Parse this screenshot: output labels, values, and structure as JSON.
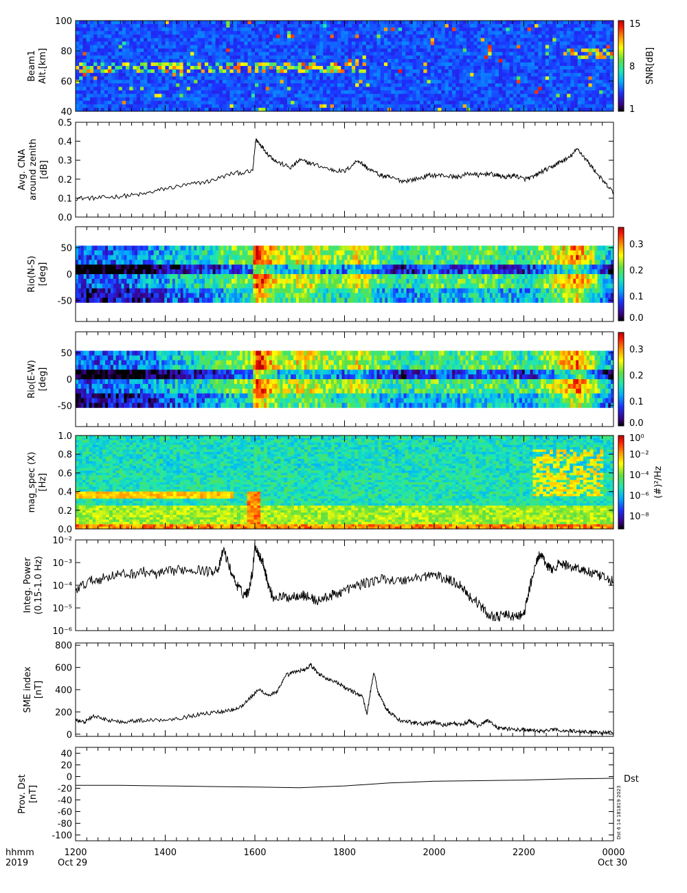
{
  "time_axis": {
    "label_line1": "hhmm",
    "label_line2": "2019",
    "ticks": [
      "1200",
      "1400",
      "1600",
      "1800",
      "2000",
      "2200",
      "0000"
    ],
    "date_start": "Oct 29",
    "date_end": "Oct 30"
  },
  "timestamp": "Dst  6 14 181819 2023",
  "chart_data": [
    {
      "id": "beam1",
      "type": "heatmap",
      "ylabel_lines": [
        "Beam1",
        "Alt.[km]"
      ],
      "yticks": [
        "40",
        "60",
        "80",
        "100"
      ],
      "ylim": [
        40,
        100
      ],
      "colorbar": {
        "label": "SNR[dB]",
        "ticks": [
          "1",
          "8",
          "15"
        ],
        "range": [
          1,
          15
        ]
      }
    },
    {
      "id": "cna",
      "type": "line",
      "ylabel_lines": [
        "Avg. CNA",
        "around zenith",
        "[dB]"
      ],
      "yticks": [
        "0.0",
        "0.1",
        "0.2",
        "0.3",
        "0.4",
        "0.5"
      ],
      "ylim": [
        0,
        0.5
      ],
      "x": [
        12.0,
        12.5,
        13.0,
        13.5,
        14.0,
        14.5,
        15.0,
        15.5,
        15.95,
        16.02,
        16.1,
        16.3,
        16.5,
        16.8,
        17.0,
        17.3,
        17.7,
        18.0,
        18.3,
        18.5,
        18.8,
        19.0,
        19.3,
        19.6,
        19.9,
        20.2,
        20.5,
        20.8,
        21.0,
        21.2,
        21.4,
        21.6,
        21.8,
        22.0,
        22.2,
        22.4,
        22.6,
        22.8,
        23.0,
        23.2,
        23.4,
        23.6,
        23.8,
        24.0
      ],
      "y": [
        0.1,
        0.1,
        0.11,
        0.12,
        0.15,
        0.17,
        0.19,
        0.23,
        0.24,
        0.41,
        0.39,
        0.33,
        0.29,
        0.26,
        0.3,
        0.28,
        0.25,
        0.24,
        0.3,
        0.26,
        0.22,
        0.21,
        0.19,
        0.2,
        0.22,
        0.22,
        0.21,
        0.23,
        0.22,
        0.23,
        0.22,
        0.21,
        0.22,
        0.2,
        0.21,
        0.24,
        0.26,
        0.29,
        0.31,
        0.36,
        0.3,
        0.24,
        0.18,
        0.13
      ]
    },
    {
      "id": "riometer-ns",
      "type": "heatmap",
      "ylabel_lines": [
        "Rio(N-S)",
        "[deg]"
      ],
      "yticks": [
        "-50",
        "0",
        "50"
      ],
      "ylim": [
        -90,
        90
      ],
      "colorbar": {
        "label": "",
        "ticks": [
          "0.0",
          "0.1",
          "0.2",
          "0.3"
        ],
        "range": [
          0,
          0.36
        ]
      }
    },
    {
      "id": "riometer-ew",
      "type": "heatmap",
      "ylabel_lines": [
        "Rio(E-W)",
        "[deg]"
      ],
      "yticks": [
        "-50",
        "0",
        "50"
      ],
      "ylim": [
        -90,
        90
      ],
      "colorbar": {
        "label": "",
        "ticks": [
          "0.0",
          "0.1",
          "0.2",
          "0.3"
        ],
        "range": [
          0,
          0.36
        ]
      }
    },
    {
      "id": "mag-spec",
      "type": "heatmap",
      "ylabel_lines": [
        "mag_spec (X)",
        "[Hz]"
      ],
      "yticks": [
        "0.0",
        "0.2",
        "0.4",
        "0.6",
        "0.8",
        "1.0"
      ],
      "ylim": [
        0,
        1.0
      ],
      "colorbar": {
        "label": "(#)²/Hz",
        "ticks": [
          "10⁰",
          "10⁻²",
          "10⁻⁴",
          "10⁻⁶",
          "10⁻⁸"
        ],
        "range_log10": [
          -9,
          0
        ]
      }
    },
    {
      "id": "integ-power",
      "type": "line",
      "ylabel_lines": [
        "Integ. Power",
        "(0.15-1.0 Hz)"
      ],
      "yticks": [
        "10⁻⁶",
        "10⁻⁵",
        "10⁻⁴",
        "10⁻³",
        "10⁻²"
      ],
      "ylim": [
        1e-06,
        0.01
      ],
      "yscale": "log",
      "x": [
        12.0,
        12.3,
        12.6,
        12.9,
        13.2,
        13.5,
        13.8,
        14.1,
        14.4,
        14.7,
        15.0,
        15.2,
        15.3,
        15.45,
        15.6,
        15.75,
        15.85,
        15.95,
        16.0,
        16.1,
        16.2,
        16.3,
        16.4,
        16.6,
        16.8,
        17.0,
        17.2,
        17.4,
        17.6,
        17.8,
        18.0,
        18.3,
        18.6,
        18.9,
        19.2,
        19.5,
        19.8,
        20.0,
        20.2,
        20.4,
        20.6,
        20.8,
        21.0,
        21.2,
        21.4,
        21.6,
        21.8,
        22.0,
        22.1,
        22.2,
        22.35,
        22.5,
        22.6,
        22.8,
        23.0,
        23.2,
        23.4,
        23.6,
        23.8,
        24.0
      ],
      "y": [
        6e-05,
        0.00015,
        0.0002,
        0.0003,
        0.0003,
        0.0004,
        0.0003,
        0.0004,
        0.0005,
        0.0005,
        0.0004,
        0.0006,
        0.004,
        0.0005,
        0.0001,
        4e-05,
        5e-05,
        0.0004,
        0.006,
        0.002,
        0.0008,
        0.0001,
        3e-05,
        3e-05,
        3e-05,
        4e-05,
        3e-05,
        2e-05,
        3e-05,
        4e-05,
        6e-05,
        0.0001,
        0.00015,
        0.0002,
        0.00015,
        0.0002,
        0.00025,
        0.0003,
        0.0002,
        0.00015,
        0.0001,
        3e-05,
        1.5e-05,
        5e-06,
        4e-06,
        5e-06,
        4e-06,
        5e-06,
        4e-05,
        0.0003,
        0.0025,
        0.0008,
        0.0005,
        0.0009,
        0.0007,
        0.0006,
        0.0004,
        0.0003,
        0.0002,
        0.00015
      ]
    },
    {
      "id": "sme-index",
      "type": "line",
      "ylabel_lines": [
        "SME index",
        "[nT]"
      ],
      "yticks": [
        "0",
        "200",
        "400",
        "600",
        "800"
      ],
      "ylim": [
        -20,
        820
      ],
      "x": [
        12.0,
        12.2,
        12.4,
        12.7,
        13.0,
        13.3,
        13.6,
        14.0,
        14.4,
        14.8,
        15.2,
        15.5,
        15.7,
        15.9,
        16.1,
        16.3,
        16.5,
        16.7,
        16.9,
        17.1,
        17.25,
        17.4,
        17.6,
        17.8,
        18.0,
        18.2,
        18.4,
        18.5,
        18.65,
        18.75,
        18.9,
        19.0,
        19.2,
        19.4,
        19.6,
        19.8,
        20.0,
        20.2,
        20.4,
        20.6,
        20.8,
        21.0,
        21.2,
        21.4,
        21.6,
        21.8,
        22.0,
        22.2,
        22.4,
        22.6,
        22.8,
        23.0,
        23.2,
        23.4,
        23.6,
        23.8,
        24.0
      ],
      "y": [
        120,
        110,
        160,
        130,
        110,
        120,
        125,
        130,
        150,
        180,
        200,
        220,
        250,
        330,
        400,
        350,
        380,
        530,
        560,
        580,
        620,
        550,
        500,
        470,
        420,
        380,
        340,
        180,
        560,
        380,
        250,
        200,
        130,
        110,
        100,
        90,
        110,
        80,
        100,
        80,
        120,
        70,
        130,
        60,
        50,
        40,
        40,
        30,
        25,
        40,
        35,
        30,
        25,
        20,
        20,
        15,
        15
      ]
    },
    {
      "id": "prov-dst",
      "type": "line",
      "ylabel_lines": [
        "Prov. Dst",
        "[nT]"
      ],
      "yticks": [
        "-100",
        "-80",
        "-60",
        "-40",
        "-20",
        "0",
        "20",
        "40"
      ],
      "ylim": [
        -110,
        50
      ],
      "series_label": "Dst",
      "x": [
        12.0,
        13.0,
        14.0,
        15.0,
        16.0,
        17.0,
        18.0,
        19.0,
        20.0,
        21.0,
        22.0,
        23.0,
        24.0
      ],
      "y": [
        -15,
        -15,
        -16,
        -17,
        -18,
        -19,
        -16,
        -11,
        -8,
        -7,
        -6,
        -4,
        -3
      ]
    }
  ]
}
